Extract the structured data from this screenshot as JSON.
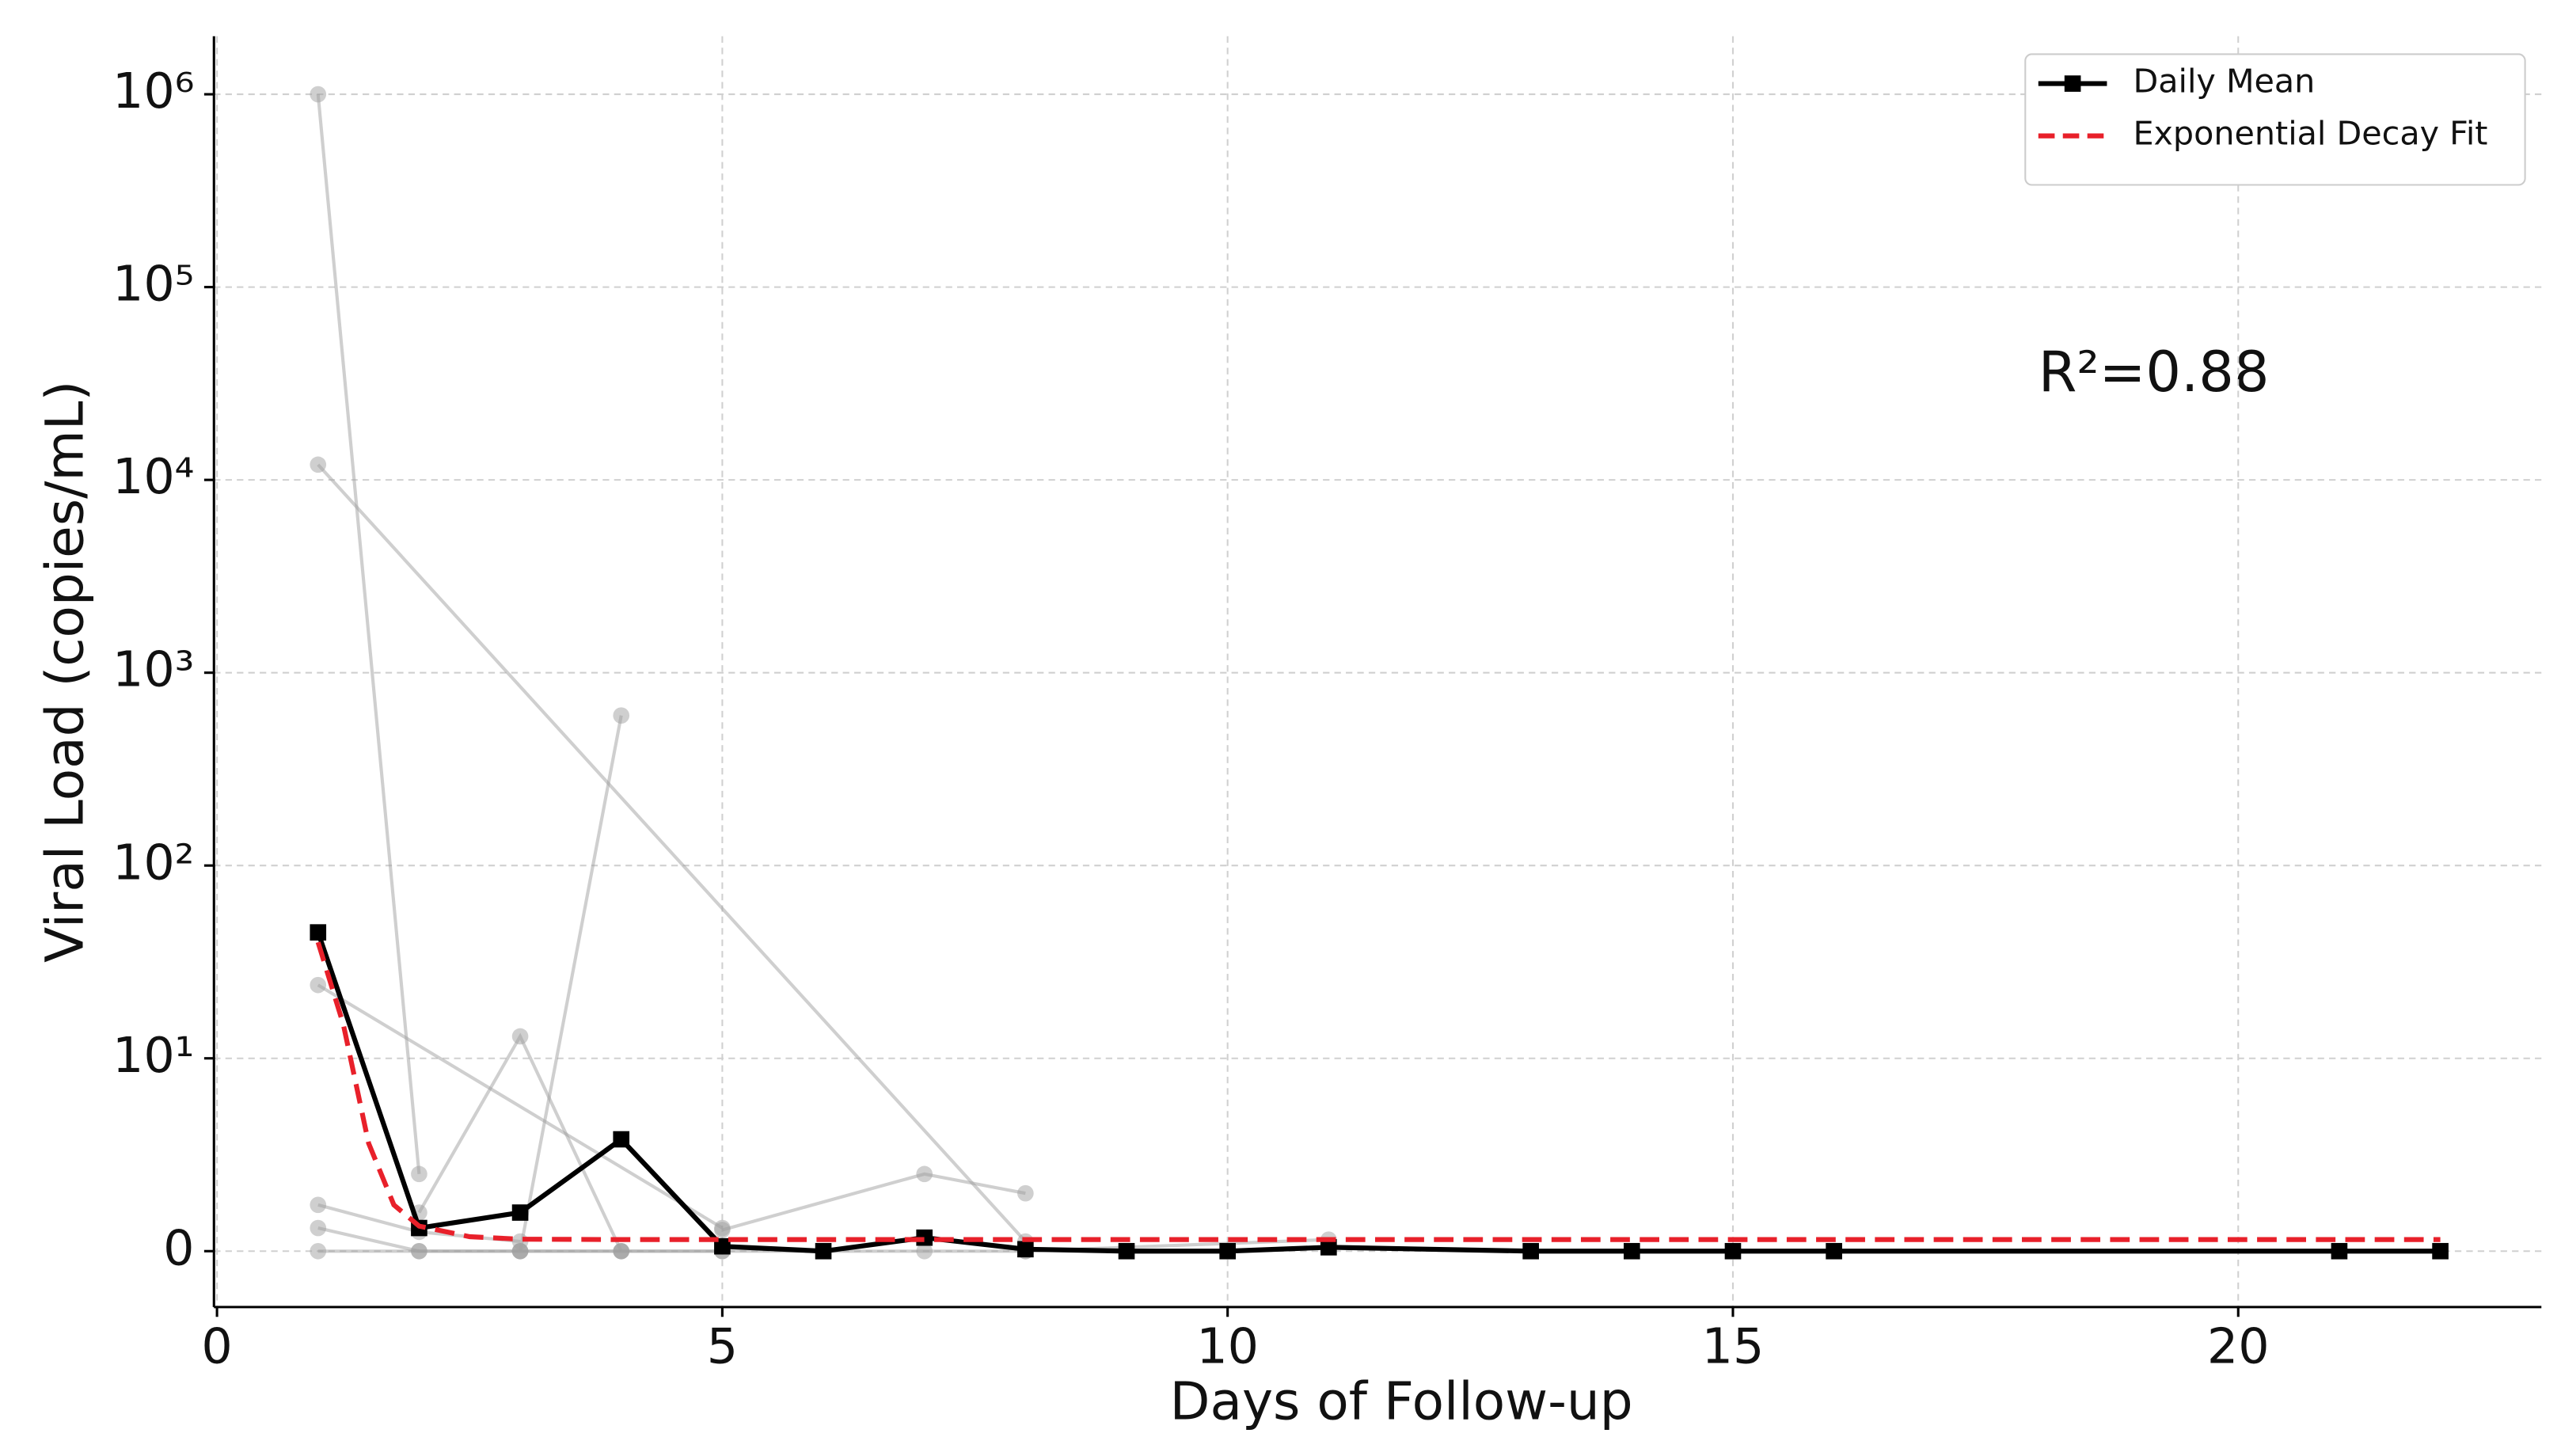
{
  "chart_data": {
    "type": "line",
    "xlabel": "Days of Follow-up",
    "ylabel": "Viral Load (copies/mL)",
    "annotation": "R²=0.88",
    "annotation_color": "#e8202a",
    "xlim": [
      -0.03,
      23
    ],
    "xticks": [
      0,
      5,
      10,
      15,
      20
    ],
    "ylim": [
      -2.9,
      2000000
    ],
    "yscale": "symlog",
    "linthresh": 10,
    "yticks": [
      0,
      {
        "value": 10,
        "label": "10¹"
      },
      {
        "value": 100,
        "label": "10²"
      },
      {
        "value": 1000,
        "label": "10³"
      },
      {
        "value": 10000,
        "label": "10⁴"
      },
      {
        "value": 100000,
        "label": "10⁵"
      },
      {
        "value": 1000000,
        "label": "10⁶"
      }
    ],
    "grid": true,
    "legend": "upper right",
    "series": [
      {
        "color": "#a0a0a0",
        "marker": "circle",
        "x": [
          1,
          2
        ],
        "values": [
          1000000,
          4
        ]
      },
      {
        "color": "#a0a0a0",
        "marker": "circle",
        "x": [
          1,
          8
        ],
        "values": [
          12000,
          0.5
        ]
      },
      {
        "color": "#a0a0a0",
        "marker": "circle",
        "x": [
          1,
          5
        ],
        "values": [
          24,
          1.2
        ]
      },
      {
        "color": "#a0a0a0",
        "marker": "circle",
        "x": [
          2,
          3,
          4
        ],
        "values": [
          2,
          13,
          0
        ]
      },
      {
        "color": "#a0a0a0",
        "marker": "circle",
        "x": [
          3,
          4
        ],
        "values": [
          0,
          600
        ]
      },
      {
        "color": "#a0a0a0",
        "marker": "circle",
        "x": [
          1,
          2,
          3
        ],
        "values": [
          2.4,
          1,
          0.5
        ]
      },
      {
        "color": "#a0a0a0",
        "marker": "circle",
        "x": [
          5,
          7,
          8
        ],
        "values": [
          1.1,
          4,
          3
        ]
      },
      {
        "color": "#a0a0a0",
        "marker": "circle",
        "x": [
          1,
          2,
          3,
          4,
          5,
          7,
          8
        ],
        "values": [
          1.2,
          0,
          0,
          0,
          0,
          0,
          0
        ]
      },
      {
        "color": "#a0a0a0",
        "marker": "circle",
        "x": [
          1,
          2,
          3,
          4,
          5
        ],
        "values": [
          0,
          0,
          0,
          0,
          0
        ]
      },
      {
        "color": "#a0a0a0",
        "marker": "circle",
        "x": [
          8,
          11
        ],
        "values": [
          0,
          0.6
        ]
      },
      {
        "name": "Daily Mean",
        "color": "#000000",
        "marker": "square",
        "x": [
          1,
          2,
          3,
          4,
          5,
          6,
          7,
          8,
          9,
          10,
          11,
          13,
          14,
          15,
          16,
          21,
          22
        ],
        "values": [
          45,
          1.2,
          2,
          5.8,
          0.25,
          0,
          0.7,
          0.1,
          0,
          0,
          0.2,
          0,
          0,
          0,
          0,
          0,
          0
        ]
      },
      {
        "name": "Exponential Decay Fit",
        "color": "#e8202a",
        "dashed": true,
        "x": [
          1,
          1.25,
          1.5,
          1.75,
          2,
          2.5,
          3,
          4,
          22
        ],
        "values": [
          40,
          15,
          5.6,
          2.4,
          1.3,
          0.75,
          0.62,
          0.6,
          0.6
        ]
      }
    ]
  }
}
